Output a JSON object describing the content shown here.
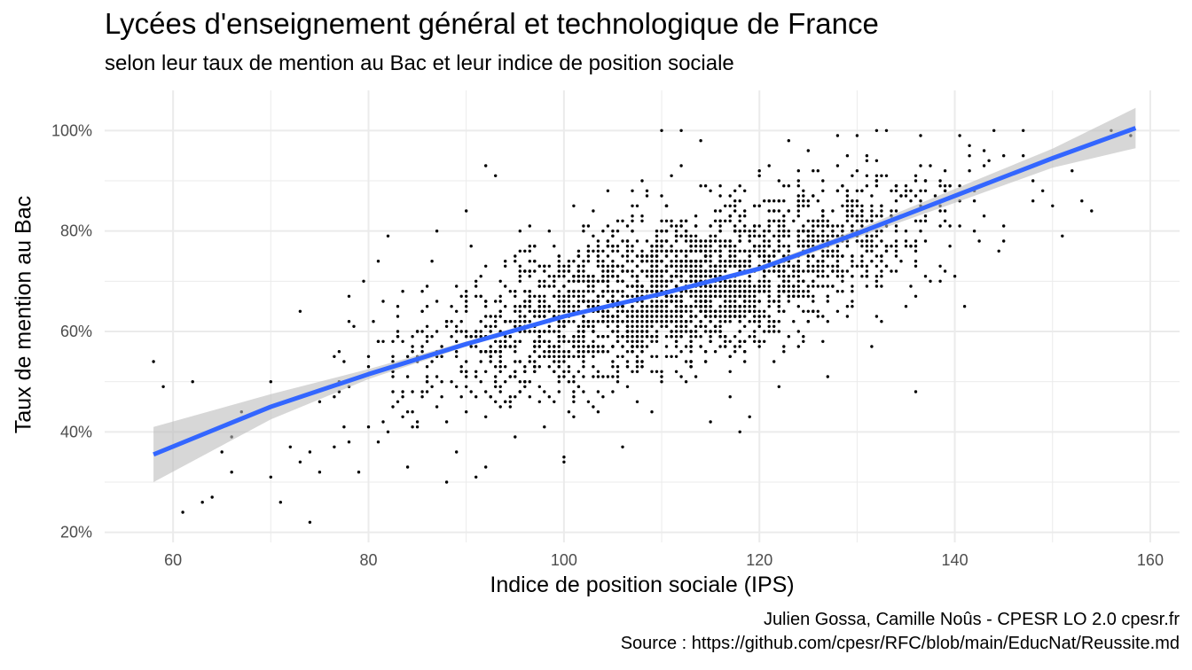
{
  "header": {
    "title": "Lycées d'enseignement général et technologique de France",
    "subtitle": "selon leur taux de mention au Bac et leur indice de position sociale"
  },
  "caption": {
    "line1": "Julien Gossa, Camille Noûs - CPESR LO 2.0 cpesr.fr",
    "line2": "Source : https://github.com/cpesr/RFC/blob/main/EducNat/Reussite.md"
  },
  "chart_data": {
    "type": "scatter",
    "xlabel": "Indice de position sociale (IPS)",
    "ylabel": "Taux de mention au Bac",
    "xlim": [
      53,
      163
    ],
    "ylim": [
      18,
      108
    ],
    "x_ticks": [
      60,
      80,
      100,
      120,
      140,
      160
    ],
    "x_tick_labels": [
      "60",
      "80",
      "100",
      "120",
      "140",
      "160"
    ],
    "y_ticks": [
      20,
      40,
      60,
      80,
      100
    ],
    "y_tick_labels": [
      "20%",
      "40%",
      "60%",
      "80%",
      "100%"
    ],
    "grid": true,
    "legend": "none",
    "colors": {
      "points": "#000000",
      "trend": "#3366ff",
      "ribbon": "#bdbdbd",
      "grid": "#ebebeb"
    },
    "points_estimated_count": 2600,
    "points_sample": [
      [
        58,
        54
      ],
      [
        59,
        49
      ],
      [
        61,
        24
      ],
      [
        62,
        50
      ],
      [
        63,
        26
      ],
      [
        64,
        27
      ],
      [
        65,
        36
      ],
      [
        66,
        39
      ],
      [
        66,
        32
      ],
      [
        67,
        44
      ],
      [
        70,
        31
      ],
      [
        70,
        50
      ],
      [
        71,
        26
      ],
      [
        72,
        37
      ],
      [
        73,
        34
      ],
      [
        73,
        64
      ],
      [
        74,
        22
      ],
      [
        74,
        36
      ],
      [
        75,
        32
      ],
      [
        75,
        46
      ],
      [
        77,
        56
      ],
      [
        77,
        50
      ],
      [
        78,
        67
      ],
      [
        78,
        62
      ],
      [
        78,
        38
      ],
      [
        79,
        32
      ],
      [
        80,
        53
      ],
      [
        81,
        74
      ],
      [
        81,
        38
      ],
      [
        82,
        40
      ],
      [
        82,
        79
      ],
      [
        83,
        46
      ],
      [
        84,
        33
      ],
      [
        85,
        42
      ],
      [
        85,
        60
      ],
      [
        86,
        58
      ],
      [
        87,
        66
      ],
      [
        87,
        80
      ],
      [
        88,
        30
      ],
      [
        89,
        36
      ],
      [
        90,
        84
      ],
      [
        90,
        44
      ],
      [
        91,
        31
      ],
      [
        92,
        93
      ],
      [
        92,
        33
      ],
      [
        93,
        91
      ],
      [
        95,
        39
      ],
      [
        97,
        53
      ],
      [
        98,
        41
      ],
      [
        99,
        56
      ],
      [
        100,
        35
      ],
      [
        100,
        34
      ],
      [
        101,
        47
      ],
      [
        103,
        71
      ],
      [
        105,
        48
      ],
      [
        106,
        37
      ],
      [
        108,
        90
      ],
      [
        109,
        55
      ],
      [
        110,
        100
      ],
      [
        111,
        91
      ],
      [
        112,
        100
      ],
      [
        114,
        98
      ],
      [
        115,
        42
      ],
      [
        117,
        47
      ],
      [
        118,
        40
      ],
      [
        119,
        43
      ],
      [
        121,
        93
      ],
      [
        122,
        49
      ],
      [
        123,
        98
      ],
      [
        125,
        96
      ],
      [
        127,
        51
      ],
      [
        128,
        99
      ],
      [
        131,
        95
      ],
      [
        132,
        100
      ],
      [
        134,
        72
      ],
      [
        136,
        48
      ],
      [
        137,
        88
      ],
      [
        139,
        84
      ],
      [
        141,
        65
      ],
      [
        143,
        93
      ],
      [
        145,
        78
      ],
      [
        147,
        95
      ],
      [
        149,
        88
      ],
      [
        150,
        85
      ],
      [
        151,
        79
      ],
      [
        152,
        92
      ],
      [
        154,
        84
      ],
      [
        156,
        100
      ],
      [
        158,
        99
      ]
    ],
    "trend_line": {
      "x": [
        58,
        70,
        80,
        90,
        100,
        110,
        120,
        130,
        140,
        150,
        158.5
      ],
      "y": [
        35.5,
        45.0,
        51.5,
        57.5,
        63.0,
        67.5,
        72.5,
        79.5,
        87.0,
        94.5,
        100.5
      ],
      "ci_lower": [
        30.0,
        42.5,
        50.5,
        57.0,
        62.6,
        67.1,
        72.0,
        78.7,
        85.6,
        92.6,
        96.5
      ],
      "ci_upper": [
        41.0,
        47.5,
        52.5,
        58.0,
        63.4,
        67.9,
        73.0,
        80.3,
        88.4,
        96.4,
        104.5
      ]
    }
  }
}
